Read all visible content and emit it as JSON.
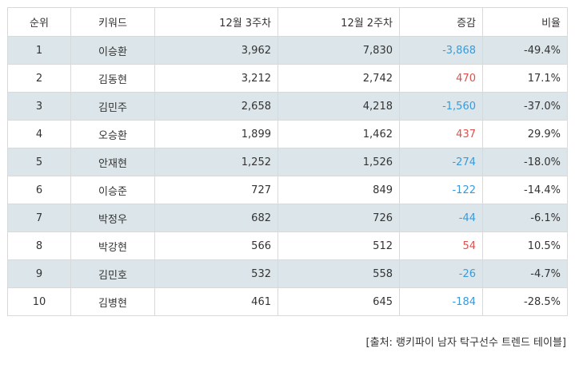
{
  "table": {
    "headers": {
      "rank": "순위",
      "keyword": "키워드",
      "week3": "12월 3주차",
      "week2": "12월 2주차",
      "diff": "증감",
      "ratio": "비율"
    },
    "rows": [
      {
        "rank": "1",
        "keyword": "이승환",
        "week3": "3,962",
        "week2": "7,830",
        "diff": "-3,868",
        "ratio": "-49.4%",
        "trend": "down"
      },
      {
        "rank": "2",
        "keyword": "김동현",
        "week3": "3,212",
        "week2": "2,742",
        "diff": "470",
        "ratio": "17.1%",
        "trend": "up"
      },
      {
        "rank": "3",
        "keyword": "김민주",
        "week3": "2,658",
        "week2": "4,218",
        "diff": "-1,560",
        "ratio": "-37.0%",
        "trend": "down"
      },
      {
        "rank": "4",
        "keyword": "오승환",
        "week3": "1,899",
        "week2": "1,462",
        "diff": "437",
        "ratio": "29.9%",
        "trend": "up"
      },
      {
        "rank": "5",
        "keyword": "안재현",
        "week3": "1,252",
        "week2": "1,526",
        "diff": "-274",
        "ratio": "-18.0%",
        "trend": "down"
      },
      {
        "rank": "6",
        "keyword": "이승준",
        "week3": "727",
        "week2": "849",
        "diff": "-122",
        "ratio": "-14.4%",
        "trend": "down"
      },
      {
        "rank": "7",
        "keyword": "박정우",
        "week3": "682",
        "week2": "726",
        "diff": "-44",
        "ratio": "-6.1%",
        "trend": "down"
      },
      {
        "rank": "8",
        "keyword": "박강현",
        "week3": "566",
        "week2": "512",
        "diff": "54",
        "ratio": "10.5%",
        "trend": "up"
      },
      {
        "rank": "9",
        "keyword": "김민호",
        "week3": "532",
        "week2": "558",
        "diff": "-26",
        "ratio": "-4.7%",
        "trend": "down"
      },
      {
        "rank": "10",
        "keyword": "김병현",
        "week3": "461",
        "week2": "645",
        "diff": "-184",
        "ratio": "-28.5%",
        "trend": "down"
      }
    ]
  },
  "source": "[출처: 랭키파이 남자 탁구선수 트렌드 테이블]",
  "colors": {
    "stripe": "#dce6ea",
    "negative": "#3a9ad9",
    "positive": "#d9534f"
  }
}
